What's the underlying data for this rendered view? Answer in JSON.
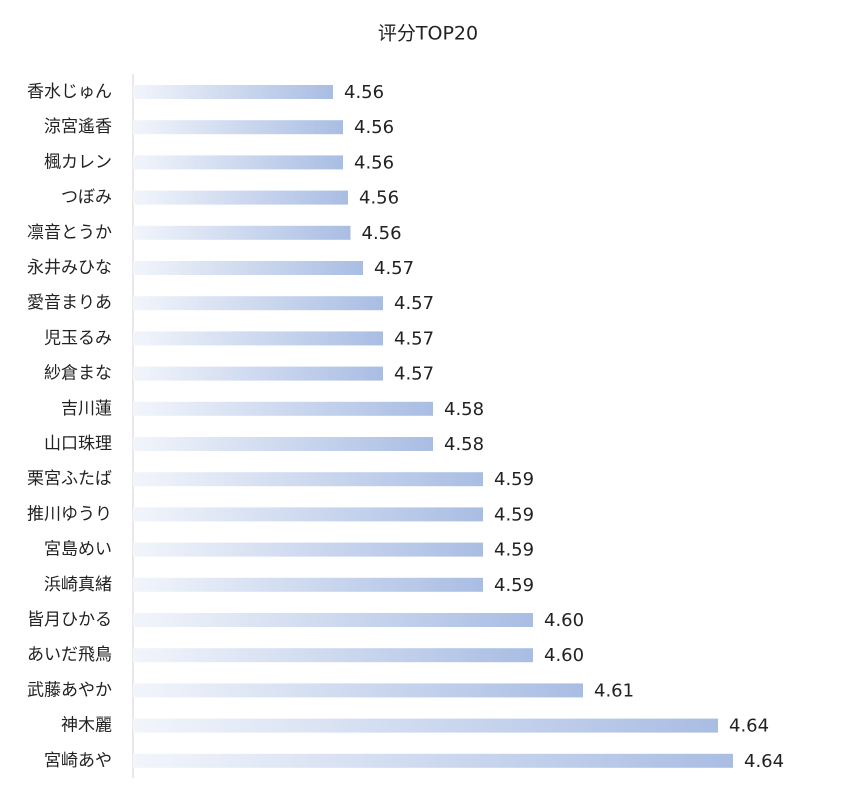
{
  "chart_data": {
    "type": "hbar",
    "title": "评分TOP20",
    "categories": [
      "香水じゅん",
      "涼宮遙香",
      "楓カレン",
      "つぼみ",
      "凛音とうか",
      "永井みひな",
      "愛音まりあ",
      "児玉るみ",
      "紗倉まな",
      "吉川蓮",
      "山口珠理",
      "栗宮ふたば",
      "推川ゆうり",
      "宮島めい",
      "浜崎真緒",
      "皆月ひかる",
      "あいだ飛鳥",
      "武藤あやか",
      "神木麗",
      "宮崎あや"
    ],
    "values": [
      4.56,
      4.562,
      4.562,
      4.563,
      4.5635,
      4.566,
      4.57,
      4.57,
      4.57,
      4.58,
      4.58,
      4.59,
      4.59,
      4.59,
      4.59,
      4.6,
      4.6,
      4.61,
      4.637,
      4.64
    ],
    "value_labels": [
      "4.56",
      "4.56",
      "4.56",
      "4.56",
      "4.56",
      "4.57",
      "4.57",
      "4.57",
      "4.57",
      "4.58",
      "4.58",
      "4.59",
      "4.59",
      "4.59",
      "4.59",
      "4.60",
      "4.60",
      "4.61",
      "4.64",
      "4.64"
    ],
    "color": "#a9bde3",
    "xlim": [
      4.52,
      4.65
    ]
  }
}
